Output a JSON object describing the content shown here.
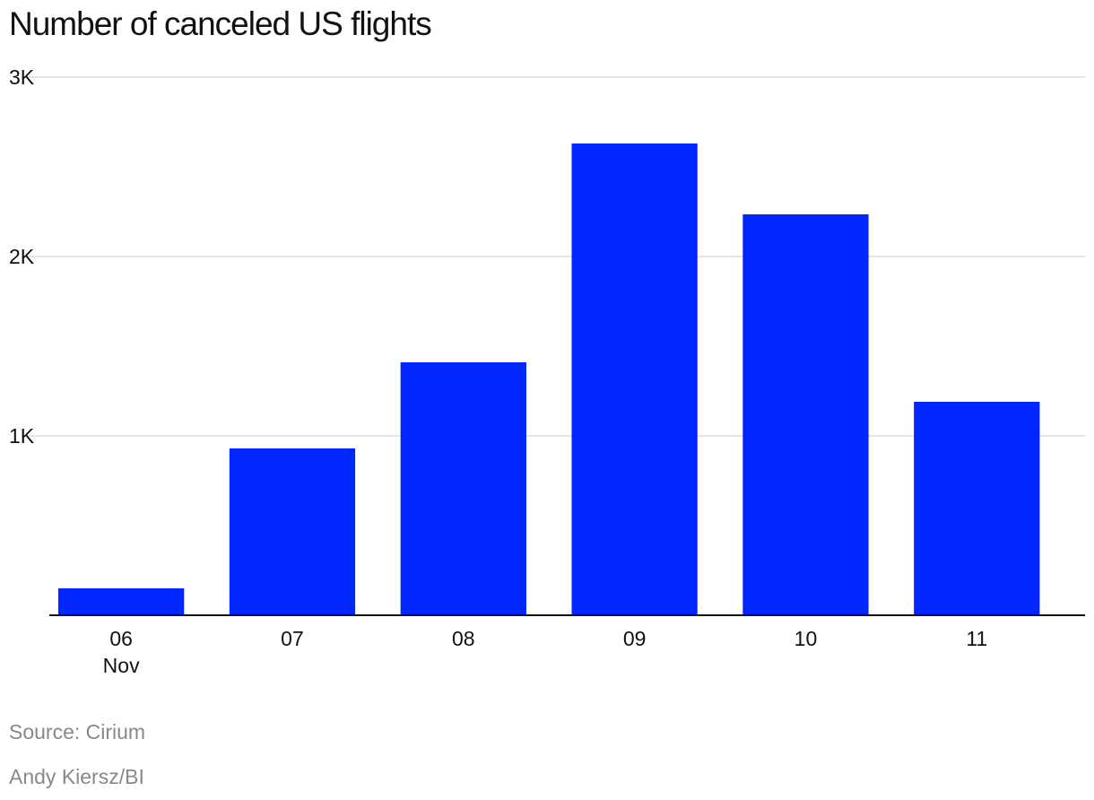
{
  "chart_data": {
    "type": "bar",
    "title": "Number of canceled US flights",
    "categories": [
      "06",
      "07",
      "08",
      "09",
      "10",
      "11"
    ],
    "category_sublabels": [
      "Nov",
      "",
      "",
      "",
      "",
      ""
    ],
    "values": [
      150,
      930,
      1410,
      2630,
      2235,
      1190
    ],
    "ylim": [
      0,
      3000
    ],
    "yticks": [
      1000,
      2000,
      3000
    ],
    "ytick_labels": [
      "1K",
      "2K",
      "3K"
    ],
    "grid": true,
    "bar_color": "#0026ff",
    "grid_color": "#dddddd",
    "axis_color": "#111111"
  },
  "footer": {
    "source": "Source: Cirium",
    "credit": "Andy Kiersz/BI"
  },
  "colors": {
    "text": "#111111",
    "muted": "#888888"
  }
}
